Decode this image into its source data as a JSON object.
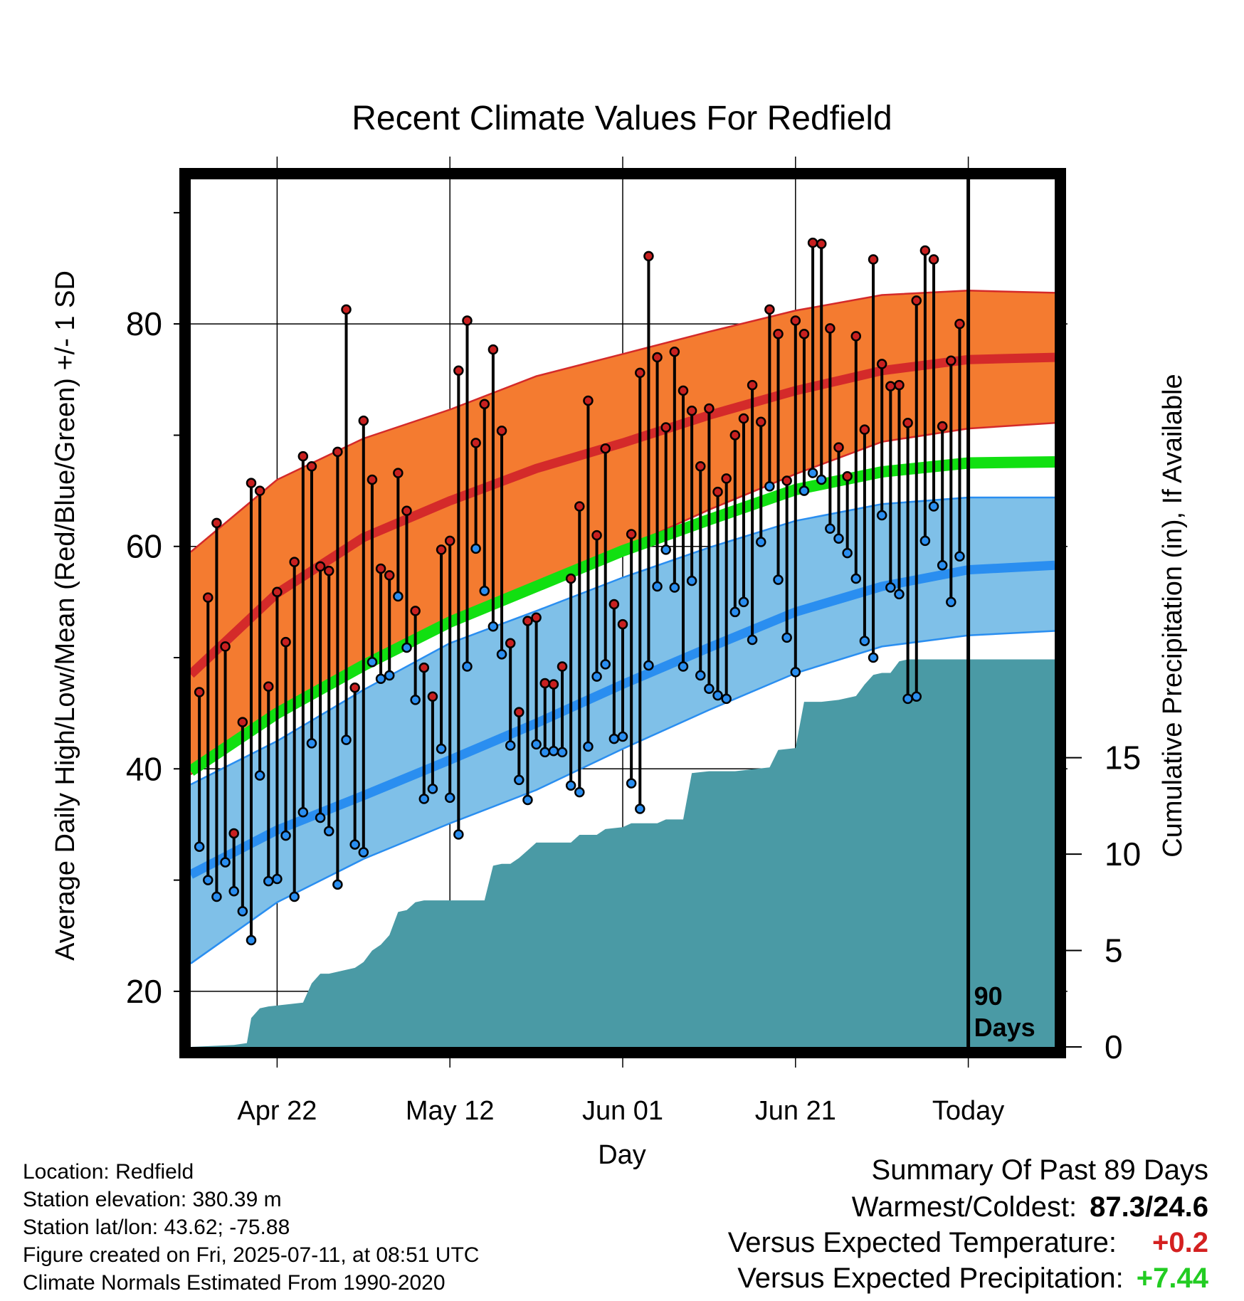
{
  "info": {
    "location": "Location: Redfield",
    "elevation": "Station elevation: 380.39 m",
    "latlon": "Station lat/lon: 43.62; -75.88",
    "created": "Figure created on Fri, 2025-07-11, at 08:51 UTC",
    "normals": "Climate Normals Estimated From 1990-2020"
  },
  "summary": {
    "title": "Summary Of Past 89 Days",
    "warm_cold_label": "Warmest/Coldest:",
    "warm_cold_value": "87.3/24.6",
    "temp_label": "Versus Expected Temperature:",
    "temp_value": "+0.2",
    "precip_label": "Versus Expected Precipitation:",
    "precip_value": "+7.44"
  },
  "colors": {
    "high_band": "#f47b30",
    "high_mean": "#d42a2a",
    "low_band": "#7fc0e8",
    "low_mean": "#2a8ef0",
    "mean_green": "#11e011",
    "precip": "#4a9aa5",
    "positive_temp": "#d42020",
    "positive_precip": "#22cc22"
  },
  "chart_data": {
    "type": "line",
    "title": "Recent Climate Values For Redfield",
    "xlabel": "Day",
    "ylabel": "Average Daily High/Low/Mean (Red/Blue/Green) +/- 1 SD",
    "y2label": "Cumulative Precipitation (in), If Available",
    "xlim": [
      0,
      100
    ],
    "ylim": [
      15,
      93
    ],
    "y2lim": [
      0,
      45
    ],
    "x_ticks": [
      {
        "x": 10,
        "label": "Apr 22"
      },
      {
        "x": 30,
        "label": "May 12"
      },
      {
        "x": 50,
        "label": "Jun 01"
      },
      {
        "x": 70,
        "label": "Jun 21"
      },
      {
        "x": 90,
        "label": "Today"
      }
    ],
    "y_ticks": [
      20,
      40,
      60,
      80
    ],
    "y_minor_ticks": [
      30,
      50,
      70,
      90
    ],
    "y2_ticks": [
      0,
      5,
      10,
      15
    ],
    "today_x": 90,
    "today_label": [
      "90",
      "Days"
    ],
    "normals": {
      "x": [
        0,
        10,
        20,
        30,
        40,
        50,
        60,
        70,
        80,
        90,
        100
      ],
      "high_mean": [
        48.5,
        55.8,
        60.8,
        64.1,
        67.0,
        69.3,
        71.8,
        74.0,
        75.8,
        76.8,
        77.0
      ],
      "high_upper": [
        59.5,
        66.0,
        69.7,
        72.3,
        75.3,
        77.3,
        79.3,
        81.2,
        82.6,
        83.0,
        82.8
      ],
      "high_lower": [
        39.5,
        44.8,
        49.7,
        53.1,
        56.7,
        59.8,
        63.3,
        66.5,
        69.4,
        70.6,
        71.1
      ],
      "low_mean": [
        30.5,
        34.5,
        37.6,
        40.8,
        44.1,
        47.6,
        50.9,
        54.1,
        56.4,
        57.9,
        58.3
      ],
      "low_upper": [
        38.6,
        42.5,
        47.1,
        51.3,
        54.2,
        57.2,
        59.9,
        62.3,
        63.8,
        64.4,
        64.4
      ],
      "low_lower": [
        22.5,
        28.0,
        31.9,
        35.1,
        38.1,
        41.8,
        45.3,
        48.6,
        51.0,
        52.0,
        52.4
      ],
      "mean": [
        39.8,
        45.0,
        49.3,
        53.2,
        56.4,
        59.6,
        62.4,
        65.1,
        66.7,
        67.5,
        67.6
      ]
    },
    "daily": {
      "high": [
        46.9,
        55.4,
        62.1,
        51.0,
        34.2,
        44.2,
        65.7,
        65.0,
        47.4,
        55.9,
        51.4,
        58.6,
        68.1,
        67.2,
        58.2,
        57.8,
        68.5,
        81.3,
        47.3,
        71.3,
        66.0,
        58.0,
        57.4,
        66.6,
        63.2,
        54.2,
        49.1,
        46.5,
        59.7,
        60.5,
        75.8,
        80.3,
        69.3,
        72.8,
        77.7,
        70.4,
        51.3,
        45.1,
        53.3,
        53.6,
        47.7,
        47.6,
        49.2,
        57.1,
        63.6,
        73.1,
        61.0,
        68.8,
        54.8,
        53.0,
        61.1,
        75.6,
        86.1,
        77.0,
        70.7,
        77.5,
        74.0,
        72.2,
        67.2,
        72.4,
        64.9,
        66.1,
        70.0,
        71.5,
        74.5,
        71.2,
        81.3,
        79.1,
        65.9,
        80.3,
        79.1,
        87.3,
        87.2,
        79.6,
        68.9,
        66.3,
        78.9,
        70.5,
        85.8,
        76.4,
        74.4,
        74.5,
        71.1,
        82.1,
        86.6,
        85.8,
        70.8,
        76.7,
        80.0
      ],
      "low": [
        33.0,
        30.0,
        28.5,
        31.6,
        29.0,
        27.2,
        24.6,
        39.4,
        29.9,
        30.1,
        34.0,
        28.5,
        36.1,
        42.3,
        35.6,
        34.4,
        29.6,
        42.6,
        33.2,
        32.5,
        49.6,
        48.1,
        48.4,
        55.5,
        50.9,
        46.2,
        37.3,
        38.2,
        41.8,
        37.4,
        34.1,
        49.2,
        59.8,
        56.0,
        52.8,
        50.3,
        42.1,
        39.0,
        37.2,
        42.2,
        41.5,
        41.6,
        41.5,
        38.5,
        37.9,
        42.0,
        48.3,
        49.4,
        42.7,
        42.9,
        38.7,
        36.4,
        49.3,
        56.4,
        59.7,
        56.3,
        49.2,
        56.9,
        48.4,
        47.2,
        46.6,
        46.3,
        54.1,
        55.0,
        51.6,
        60.4,
        65.4,
        57.0,
        51.8,
        48.7,
        65.0,
        66.6,
        66.0,
        61.6,
        60.7,
        59.4,
        57.1,
        51.5,
        50.0,
        62.8,
        56.3,
        55.7,
        46.3,
        46.5,
        60.5,
        63.6,
        58.3,
        55.0,
        59.1
      ]
    },
    "precip": {
      "x": [
        0,
        5,
        6.5,
        7,
        8,
        9,
        13,
        14,
        15,
        16,
        17,
        18,
        19,
        20,
        21,
        22,
        23,
        24,
        25,
        26,
        27,
        28,
        34,
        35,
        36,
        37,
        38,
        39,
        40,
        44,
        45,
        47,
        48,
        50,
        51,
        54,
        55,
        57,
        58,
        60,
        61,
        63,
        65,
        67,
        68,
        70,
        71,
        73,
        75,
        77,
        78,
        79,
        80,
        81,
        82,
        83,
        84,
        85,
        86,
        100
      ],
      "y": [
        0,
        0.1,
        0.2,
        1.5,
        2.0,
        2.1,
        2.3,
        3.3,
        3.8,
        3.8,
        3.9,
        4.0,
        4.1,
        4.4,
        5.0,
        5.3,
        5.8,
        7.0,
        7.1,
        7.5,
        7.6,
        7.6,
        7.6,
        9.4,
        9.5,
        9.5,
        9.8,
        10.2,
        10.6,
        10.6,
        11.0,
        11.0,
        11.3,
        11.4,
        11.6,
        11.6,
        11.8,
        11.8,
        14.2,
        14.3,
        14.3,
        14.3,
        14.4,
        14.5,
        15.4,
        15.5,
        17.9,
        17.9,
        18.0,
        18.2,
        18.8,
        19.3,
        19.4,
        19.4,
        20.0,
        20.1,
        20.1,
        20.1,
        20.1,
        20.1
      ]
    }
  }
}
